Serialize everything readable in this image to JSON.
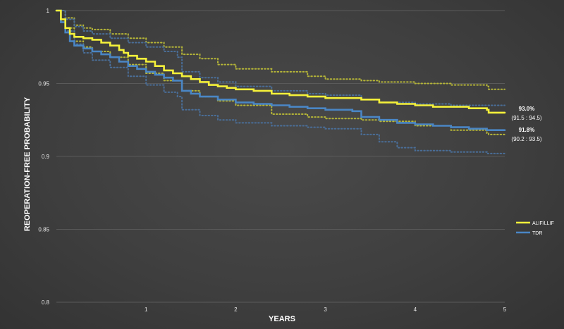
{
  "chart_data": {
    "type": "line",
    "xlabel": "YEARS",
    "ylabel": "REOPERATION-FREE  PROBABILITY",
    "xlim": [
      0,
      5
    ],
    "ylim": [
      0.8,
      1
    ],
    "x_ticks": [
      "1",
      "2",
      "3",
      "4",
      "5"
    ],
    "y_ticks": [
      "1",
      "0.95",
      "0.9",
      "0.85",
      "0.8"
    ],
    "y_tick_values": [
      1,
      0.95,
      0.9,
      0.85,
      0.8
    ],
    "grid": "horizontal",
    "legend_position": "right",
    "series": [
      {
        "name": "ALIF/LLIF",
        "color": "#f5f13a",
        "end_value": "93.0%",
        "end_ci": "(91.5 : 94.5)",
        "x": [
          0,
          0.05,
          0.1,
          0.15,
          0.2,
          0.3,
          0.4,
          0.5,
          0.6,
          0.7,
          0.75,
          0.8,
          0.9,
          1.0,
          1.1,
          1.2,
          1.3,
          1.4,
          1.5,
          1.6,
          1.7,
          1.8,
          1.9,
          2.0,
          2.2,
          2.4,
          2.6,
          2.8,
          3.0,
          3.2,
          3.4,
          3.6,
          3.8,
          4.0,
          4.2,
          4.4,
          4.6,
          4.8,
          4.82,
          5.0
        ],
        "y": [
          1.0,
          0.994,
          0.988,
          0.984,
          0.982,
          0.981,
          0.98,
          0.978,
          0.976,
          0.973,
          0.971,
          0.969,
          0.967,
          0.965,
          0.962,
          0.959,
          0.957,
          0.955,
          0.953,
          0.951,
          0.949,
          0.948,
          0.947,
          0.946,
          0.945,
          0.943,
          0.942,
          0.941,
          0.94,
          0.94,
          0.939,
          0.937,
          0.936,
          0.935,
          0.934,
          0.934,
          0.933,
          0.932,
          0.93,
          0.93
        ]
      },
      {
        "name": "TDR",
        "color": "#4a86c5",
        "end_value": "91.8%",
        "end_ci": "(90.2 : 93.5)",
        "x": [
          0,
          0.05,
          0.1,
          0.15,
          0.2,
          0.3,
          0.4,
          0.5,
          0.6,
          0.7,
          0.8,
          0.9,
          1.0,
          1.1,
          1.2,
          1.3,
          1.4,
          1.5,
          1.6,
          1.8,
          2.0,
          2.2,
          2.4,
          2.6,
          2.8,
          3.0,
          3.2,
          3.3,
          3.4,
          3.6,
          3.8,
          4.0,
          4.2,
          4.4,
          4.6,
          4.8,
          5.0
        ],
        "y": [
          1.0,
          0.992,
          0.985,
          0.979,
          0.976,
          0.974,
          0.972,
          0.97,
          0.968,
          0.965,
          0.962,
          0.96,
          0.958,
          0.956,
          0.954,
          0.952,
          0.945,
          0.943,
          0.941,
          0.939,
          0.937,
          0.936,
          0.935,
          0.934,
          0.933,
          0.932,
          0.932,
          0.931,
          0.927,
          0.925,
          0.923,
          0.922,
          0.921,
          0.92,
          0.919,
          0.918,
          0.918
        ]
      },
      {
        "name": "",
        "color": "#b5b538",
        "dotted": true,
        "x": [
          0,
          0.1,
          0.2,
          0.3,
          0.4,
          0.6,
          0.8,
          1.0,
          1.2,
          1.4,
          1.6,
          1.8,
          2.0,
          2.4,
          2.8,
          3.0,
          3.4,
          3.6,
          4.0,
          4.4,
          4.8,
          4.82,
          5.0
        ],
        "y": [
          1.0,
          0.995,
          0.99,
          0.988,
          0.987,
          0.984,
          0.981,
          0.978,
          0.975,
          0.97,
          0.967,
          0.963,
          0.96,
          0.958,
          0.955,
          0.953,
          0.952,
          0.951,
          0.95,
          0.949,
          0.948,
          0.946,
          0.946
        ]
      },
      {
        "name": "",
        "color": "#b5b538",
        "dotted": true,
        "x": [
          0,
          0.1,
          0.2,
          0.3,
          0.4,
          0.6,
          0.8,
          1.0,
          1.2,
          1.4,
          1.6,
          1.8,
          2.0,
          2.4,
          2.8,
          3.0,
          3.4,
          3.6,
          4.0,
          4.4,
          4.8,
          4.82,
          5.0
        ],
        "y": [
          1.0,
          0.988,
          0.979,
          0.975,
          0.972,
          0.968,
          0.963,
          0.957,
          0.952,
          0.945,
          0.941,
          0.938,
          0.935,
          0.929,
          0.927,
          0.926,
          0.925,
          0.924,
          0.921,
          0.918,
          0.916,
          0.915,
          0.915
        ]
      },
      {
        "name": "",
        "color": "#4a6e98",
        "dotted": true,
        "x": [
          0,
          0.1,
          0.2,
          0.3,
          0.4,
          0.6,
          0.8,
          1.0,
          1.2,
          1.35,
          1.4,
          1.6,
          1.8,
          2.0,
          2.4,
          2.8,
          3.0,
          3.3,
          3.4,
          3.6,
          4.0,
          4.4,
          4.8,
          5.0
        ],
        "y": [
          1.0,
          0.994,
          0.989,
          0.986,
          0.984,
          0.981,
          0.978,
          0.975,
          0.972,
          0.968,
          0.958,
          0.954,
          0.951,
          0.948,
          0.945,
          0.943,
          0.942,
          0.942,
          0.939,
          0.937,
          0.936,
          0.935,
          0.935,
          0.935
        ]
      },
      {
        "name": "",
        "color": "#4a6e98",
        "dotted": true,
        "x": [
          0,
          0.1,
          0.2,
          0.3,
          0.4,
          0.6,
          0.8,
          1.0,
          1.2,
          1.35,
          1.4,
          1.6,
          1.8,
          2.0,
          2.4,
          2.8,
          3.0,
          3.3,
          3.4,
          3.6,
          3.8,
          4.0,
          4.4,
          4.8,
          5.0
        ],
        "y": [
          1.0,
          0.986,
          0.977,
          0.971,
          0.966,
          0.961,
          0.955,
          0.949,
          0.944,
          0.941,
          0.932,
          0.928,
          0.925,
          0.923,
          0.921,
          0.92,
          0.919,
          0.919,
          0.915,
          0.91,
          0.906,
          0.904,
          0.903,
          0.902,
          0.902
        ]
      }
    ]
  }
}
